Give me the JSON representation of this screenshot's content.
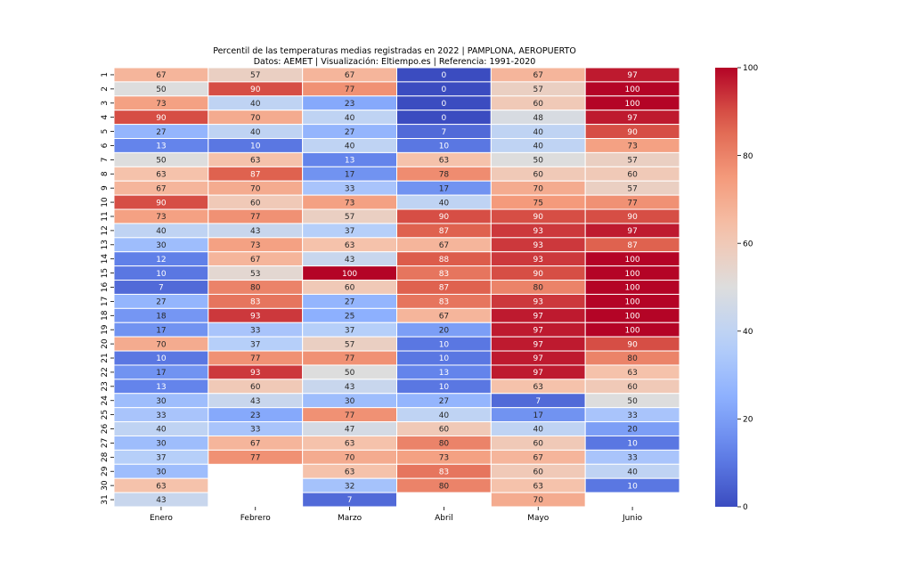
{
  "chart_data": {
    "type": "heatmap",
    "title": "Percentil de las temperaturas medias registradas en 2022 | PAMPLONA, AEROPUERTO",
    "subtitle": "Datos: AEMET | Visualización: Eltiempo.es | Referencia: 1991-2020",
    "xlabel": "",
    "ylabel": "",
    "columns": [
      "Enero",
      "Febrero",
      "Marzo",
      "Abril",
      "Mayo",
      "Junio"
    ],
    "rows": [
      "1",
      "2",
      "3",
      "4",
      "5",
      "6",
      "7",
      "8",
      "9",
      "10",
      "11",
      "12",
      "13",
      "14",
      "15",
      "16",
      "17",
      "18",
      "19",
      "20",
      "21",
      "22",
      "23",
      "24",
      "25",
      "26",
      "27",
      "28",
      "29",
      "30",
      "31"
    ],
    "values": [
      [
        67,
        57,
        67,
        0,
        67,
        97
      ],
      [
        50,
        90,
        77,
        0,
        57,
        100
      ],
      [
        73,
        40,
        23,
        0,
        60,
        100
      ],
      [
        90,
        70,
        40,
        0,
        48,
        97
      ],
      [
        27,
        40,
        27,
        7,
        40,
        90
      ],
      [
        13,
        10,
        40,
        10,
        40,
        73
      ],
      [
        50,
        63,
        13,
        63,
        50,
        57
      ],
      [
        63,
        87,
        17,
        78,
        60,
        60
      ],
      [
        67,
        70,
        33,
        17,
        70,
        57
      ],
      [
        90,
        60,
        73,
        40,
        75,
        77
      ],
      [
        73,
        77,
        57,
        90,
        90,
        90
      ],
      [
        40,
        43,
        37,
        87,
        93,
        97
      ],
      [
        30,
        73,
        63,
        67,
        93,
        87
      ],
      [
        12,
        67,
        43,
        88,
        93,
        100
      ],
      [
        10,
        53,
        100,
        83,
        90,
        100
      ],
      [
        7,
        80,
        60,
        87,
        80,
        100
      ],
      [
        27,
        83,
        27,
        83,
        93,
        100
      ],
      [
        18,
        93,
        25,
        67,
        97,
        100
      ],
      [
        17,
        33,
        37,
        20,
        97,
        100
      ],
      [
        70,
        37,
        57,
        10,
        97,
        90
      ],
      [
        10,
        77,
        77,
        10,
        97,
        80
      ],
      [
        17,
        93,
        50,
        13,
        97,
        63
      ],
      [
        13,
        60,
        43,
        10,
        63,
        60
      ],
      [
        30,
        43,
        30,
        27,
        7,
        50
      ],
      [
        33,
        23,
        77,
        40,
        17,
        33
      ],
      [
        40,
        33,
        47,
        60,
        40,
        20
      ],
      [
        30,
        67,
        63,
        80,
        60,
        10
      ],
      [
        37,
        77,
        70,
        73,
        67,
        33
      ],
      [
        30,
        null,
        63,
        83,
        60,
        40
      ],
      [
        63,
        null,
        32,
        80,
        63,
        10
      ],
      [
        43,
        null,
        7,
        null,
        70,
        null
      ]
    ],
    "colormap": "coolwarm",
    "vmin": 0,
    "vmax": 100,
    "colorbar": {
      "ticks": [
        0,
        20,
        40,
        60,
        80,
        100
      ],
      "placement": "right"
    },
    "annotated": true,
    "grid": false
  }
}
